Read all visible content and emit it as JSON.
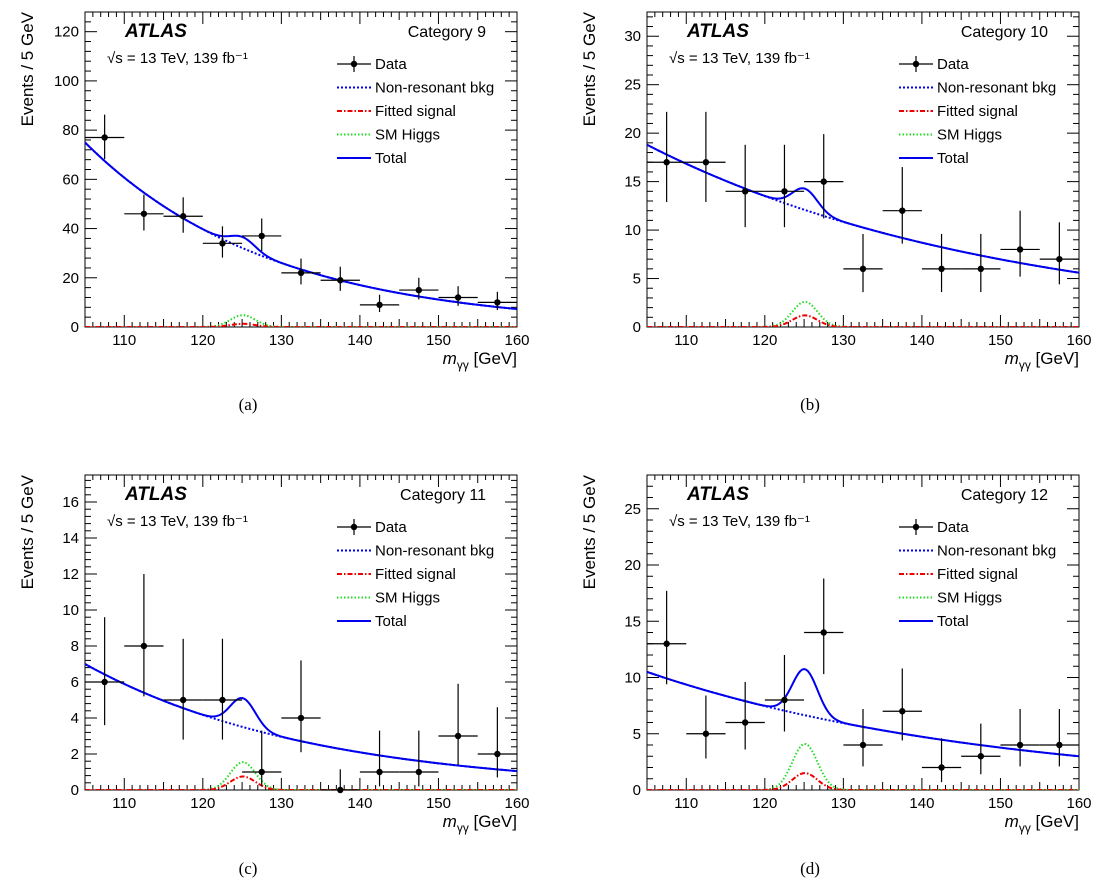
{
  "figure": {
    "panel_labels": [
      "(a)",
      "(b)",
      "(c)",
      "(d)"
    ],
    "experiment": "ATLAS",
    "energy_lumi": "√s = 13 TeV, 139 fb⁻¹",
    "legend": [
      "Data",
      "Non-resonant bkg",
      "Fitted signal",
      "SM Higgs",
      "Total"
    ],
    "ylabel": "Events / 5 GeV",
    "xlabel_main": "m",
    "xlabel_sub": "γγ",
    "xlabel_unit": " [GeV]"
  },
  "colors": {
    "data": "#000000",
    "non_resonant_bkg": "#0000ee",
    "fitted_signal": "#ee0000",
    "sm_higgs": "#22dd22",
    "total": "#0000ee"
  },
  "chart_data": [
    {
      "type": "scatter",
      "title": "Category 9",
      "xlabel": "m_γγ [GeV]",
      "ylabel": "Events / 5 GeV",
      "xlim": [
        105,
        160
      ],
      "ylim": [
        0,
        128
      ],
      "xticks": [
        110,
        120,
        130,
        140,
        150,
        160
      ],
      "yticks": [
        0,
        20,
        40,
        60,
        80,
        100,
        120
      ],
      "legend_position": "top-right",
      "data": {
        "x": [
          107.5,
          112.5,
          117.5,
          122.5,
          127.5,
          132.5,
          137.5,
          142.5,
          147.5,
          152.5,
          157.5
        ],
        "y": [
          77,
          46,
          45,
          34,
          37,
          22,
          19,
          9,
          15,
          12,
          10
        ],
        "err_up": [
          9.3,
          7.8,
          7.7,
          6.9,
          7.1,
          5.8,
          5.5,
          4.1,
          5.0,
          4.6,
          4.3
        ],
        "err_down": [
          8.8,
          6.8,
          6.7,
          5.8,
          6.1,
          4.7,
          4.3,
          2.9,
          3.8,
          3.4,
          3.1
        ]
      },
      "background": {
        "model": "exponential",
        "y_at_105": 75,
        "y_at_160": 7.3
      },
      "fitted_signal_peak": 1.3,
      "sm_higgs_peak": 4.8,
      "total_peak_excess": 4.5,
      "peak_mass": 125.1,
      "peak_width": 1.6
    },
    {
      "type": "scatter",
      "title": "Category 10",
      "xlabel": "m_γγ [GeV]",
      "ylabel": "Events / 5 GeV",
      "xlim": [
        105,
        160
      ],
      "ylim": [
        0,
        32.5
      ],
      "xticks": [
        110,
        120,
        130,
        140,
        150,
        160
      ],
      "yticks": [
        0,
        5,
        10,
        15,
        20,
        25,
        30
      ],
      "legend_position": "top-right",
      "data": {
        "x": [
          107.5,
          112.5,
          117.5,
          122.5,
          127.5,
          132.5,
          137.5,
          142.5,
          147.5,
          152.5,
          157.5
        ],
        "y": [
          17,
          17,
          14,
          14,
          15,
          6,
          12,
          6,
          6,
          8,
          7
        ],
        "err_up": [
          5.2,
          5.2,
          4.8,
          4.8,
          4.9,
          3.6,
          4.5,
          3.6,
          3.6,
          4.0,
          3.8
        ],
        "err_down": [
          4.1,
          4.1,
          3.7,
          3.7,
          3.8,
          2.4,
          3.4,
          2.4,
          2.4,
          2.8,
          2.6
        ]
      },
      "background": {
        "model": "exponential",
        "y_at_105": 18.8,
        "y_at_160": 5.6
      },
      "fitted_signal_peak": 1.2,
      "sm_higgs_peak": 2.6,
      "total_peak_excess": 2.2,
      "peak_mass": 125.1,
      "peak_width": 1.6
    },
    {
      "type": "scatter",
      "title": "Category 11",
      "xlabel": "m_γγ [GeV]",
      "ylabel": "Events / 5 GeV",
      "xlim": [
        105,
        160
      ],
      "ylim": [
        0,
        17.5
      ],
      "xticks": [
        110,
        120,
        130,
        140,
        150,
        160
      ],
      "yticks": [
        0,
        2,
        4,
        6,
        8,
        10,
        12,
        14,
        16
      ],
      "legend_position": "top-right",
      "data": {
        "x": [
          107.5,
          112.5,
          117.5,
          122.5,
          127.5,
          132.5,
          137.5,
          142.5,
          147.5,
          152.5,
          157.5
        ],
        "y": [
          6,
          8,
          5,
          5,
          1,
          4,
          0,
          1,
          1,
          3,
          2
        ],
        "err_up": [
          3.6,
          4.0,
          3.4,
          3.4,
          2.3,
          3.2,
          1.15,
          2.3,
          2.3,
          2.9,
          2.6
        ],
        "err_down": [
          2.4,
          2.8,
          2.2,
          2.2,
          0.8,
          1.9,
          0,
          0.8,
          0.8,
          1.6,
          1.3
        ]
      },
      "background": {
        "model": "exponential",
        "y_at_105": 7.0,
        "y_at_160": 1.05
      },
      "fitted_signal_peak": 0.75,
      "sm_higgs_peak": 1.55,
      "total_peak_excess": 1.6,
      "peak_mass": 125.1,
      "peak_width": 1.6
    },
    {
      "type": "scatter",
      "title": "Category 12",
      "xlabel": "m_γγ [GeV]",
      "ylabel": "Events / 5 GeV",
      "xlim": [
        105,
        160
      ],
      "ylim": [
        0,
        28
      ],
      "xticks": [
        110,
        120,
        130,
        140,
        150,
        160
      ],
      "yticks": [
        0,
        5,
        10,
        15,
        20,
        25
      ],
      "legend_position": "top-right",
      "data": {
        "x": [
          107.5,
          112.5,
          117.5,
          122.5,
          127.5,
          132.5,
          137.5,
          142.5,
          147.5,
          152.5,
          157.5
        ],
        "y": [
          13,
          5,
          6,
          8,
          14,
          4,
          7,
          2,
          3,
          4,
          4
        ],
        "err_up": [
          4.7,
          3.4,
          3.6,
          4.0,
          4.8,
          3.2,
          3.8,
          2.6,
          2.9,
          3.2,
          3.2
        ],
        "err_down": [
          3.6,
          2.2,
          2.4,
          2.8,
          3.7,
          1.9,
          2.6,
          1.3,
          1.6,
          1.9,
          1.9
        ]
      },
      "background": {
        "model": "exponential",
        "y_at_105": 10.5,
        "y_at_160": 3.0
      },
      "fitted_signal_peak": 1.5,
      "sm_higgs_peak": 4.1,
      "total_peak_excess": 4.1,
      "peak_mass": 125.1,
      "peak_width": 1.6
    }
  ]
}
